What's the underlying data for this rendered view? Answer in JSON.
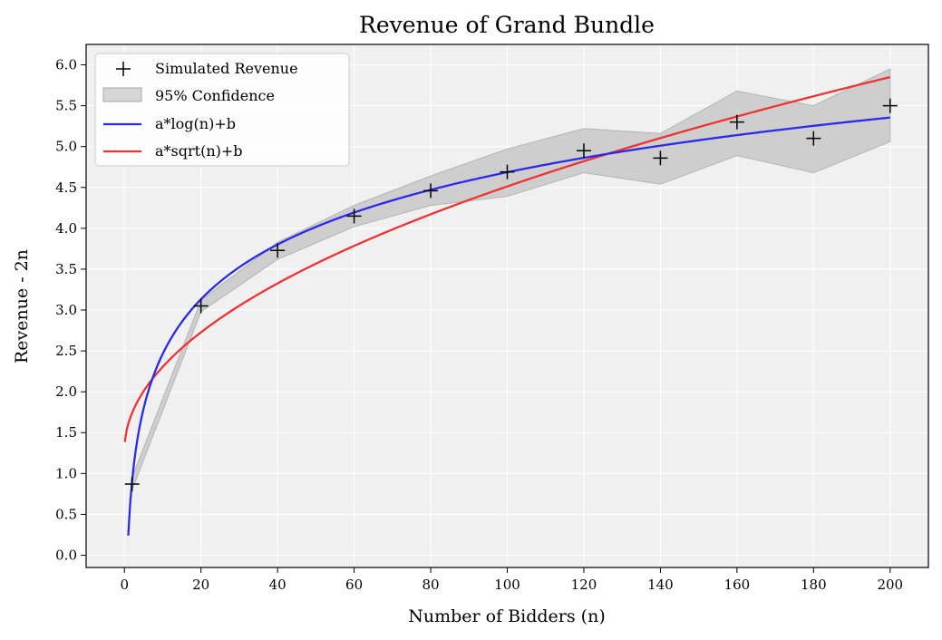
{
  "chart_data": {
    "type": "line",
    "title": "Revenue of Grand Bundle",
    "xlabel": "Number of Bidders (n)",
    "ylabel": "Revenue - 2n",
    "xlim": [
      -10,
      210
    ],
    "ylim": [
      -0.15,
      6.25
    ],
    "xticks": [
      0,
      20,
      40,
      60,
      80,
      100,
      120,
      140,
      160,
      180,
      200
    ],
    "yticks": [
      0.0,
      0.5,
      1.0,
      1.5,
      2.0,
      2.5,
      3.0,
      3.5,
      4.0,
      4.5,
      5.0,
      5.5,
      6.0
    ],
    "grid": true,
    "legend_position": "upper-left",
    "background_color": "#f0f0f0",
    "x": [
      2,
      20,
      40,
      60,
      80,
      100,
      120,
      140,
      160,
      180,
      200
    ],
    "series": [
      {
        "name": "Simulated Revenue",
        "kind": "markers",
        "marker": "plus",
        "color": "#000000",
        "values": [
          0.87,
          3.05,
          3.73,
          4.15,
          4.46,
          4.69,
          4.95,
          4.86,
          5.3,
          5.1,
          5.5
        ]
      },
      {
        "name": "95% Confidence",
        "kind": "band",
        "color": "#c8c8c8",
        "lower": [
          0.8,
          2.98,
          3.62,
          4.02,
          4.28,
          4.39,
          4.68,
          4.54,
          4.89,
          4.68,
          5.06
        ],
        "upper": [
          0.95,
          3.12,
          3.83,
          4.28,
          4.64,
          4.97,
          5.22,
          5.16,
          5.68,
          5.5,
          5.95
        ]
      },
      {
        "name": "a*log(n)+b",
        "kind": "curve",
        "formula": "log",
        "color": "#2a2ae8",
        "a": 0.9655,
        "b": 0.2398,
        "x_range": [
          1,
          200
        ]
      },
      {
        "name": "a*sqrt(n)+b",
        "kind": "curve",
        "formula": "sqrt",
        "color": "#ee3333",
        "a": 0.3229,
        "b": 1.2835,
        "x_range": [
          0.1,
          200
        ]
      }
    ]
  }
}
